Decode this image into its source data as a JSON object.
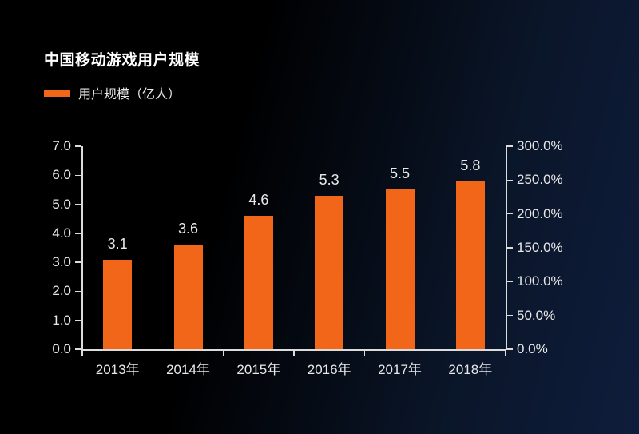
{
  "chart": {
    "title": "中国移动游戏用户规模",
    "legend_label": "用户规模（亿人）"
  },
  "chart_data": {
    "type": "bar",
    "title": "中国移动游戏用户规模",
    "legend_entries": [
      "用户规模（亿人）"
    ],
    "legend_position": "top-left",
    "categories": [
      "2013年",
      "2014年",
      "2015年",
      "2016年",
      "2017年",
      "2018年"
    ],
    "values": [
      3.1,
      3.6,
      4.6,
      5.3,
      5.5,
      5.8
    ],
    "data_labels": [
      "3.1",
      "3.6",
      "4.6",
      "5.3",
      "5.5",
      "5.8"
    ],
    "left_axis": {
      "min": 0.0,
      "max": 7.0,
      "tick_labels": [
        "0.0",
        "1.0",
        "2.0",
        "3.0",
        "4.0",
        "5.0",
        "6.0",
        "7.0"
      ]
    },
    "right_axis": {
      "min": 0.0,
      "max": 300.0,
      "tick_labels": [
        "0.0%",
        "50.0%",
        "100.0%",
        "150.0%",
        "200.0%",
        "250.0%",
        "300.0%"
      ]
    },
    "grid": false,
    "colors": {
      "bar": "#f2661a",
      "axis": "#dcdcdc",
      "label": "#e8e8e8",
      "title": "#ffffff",
      "background_start": "#000000",
      "background_end": "#0f1d3c"
    }
  }
}
